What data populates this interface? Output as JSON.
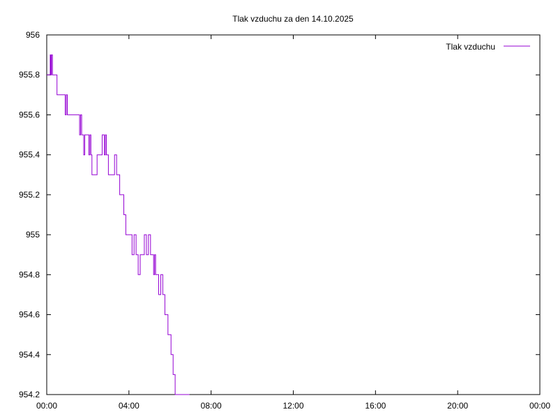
{
  "chart_data": {
    "type": "line",
    "title": "Tlak vzduchu za den 14.10.2025",
    "xlabel": "",
    "ylabel": "",
    "x_ticks": [
      "00:00",
      "04:00",
      "08:00",
      "12:00",
      "16:00",
      "20:00",
      "00:00"
    ],
    "y_ticks": [
      "954.2",
      "954.4",
      "954.6",
      "954.8",
      "955",
      "955.2",
      "955.4",
      "955.6",
      "955.8",
      "956"
    ],
    "xlim_hours": [
      0,
      24
    ],
    "ylim": [
      954.2,
      956
    ],
    "grid": false,
    "legend_position": "top-right",
    "series_color": "#9400d3",
    "series": [
      {
        "name": "Tlak vzduchu",
        "x_hours": [
          0.0,
          0.15,
          0.17,
          0.2,
          0.23,
          0.28,
          0.33,
          0.5,
          0.85,
          0.9,
          0.95,
          1.0,
          1.05,
          1.3,
          1.55,
          1.6,
          1.65,
          1.7,
          1.75,
          1.8,
          1.85,
          1.95,
          2.05,
          2.1,
          2.15,
          2.2,
          2.35,
          2.45,
          2.55,
          2.7,
          2.8,
          2.85,
          2.9,
          2.95,
          3.0,
          3.1,
          3.2,
          3.3,
          3.4,
          3.5,
          3.55,
          3.65,
          3.75,
          3.85,
          3.95,
          4.05,
          4.15,
          4.25,
          4.35,
          4.45,
          4.55,
          4.65,
          4.75,
          4.85,
          4.95,
          5.05,
          5.15,
          5.2,
          5.25,
          5.3,
          5.35,
          5.45,
          5.5,
          5.55,
          5.65,
          5.75,
          5.8,
          5.9,
          6.0,
          6.05,
          6.1,
          6.15,
          6.2,
          6.25,
          6.3,
          6.35,
          6.4,
          6.45,
          6.5,
          6.55,
          6.6,
          6.7,
          6.75,
          6.85,
          6.9,
          6.95
        ],
        "values": [
          955.8,
          955.8,
          955.9,
          955.8,
          955.9,
          955.8,
          955.8,
          955.7,
          955.7,
          955.6,
          955.7,
          955.6,
          955.6,
          955.6,
          955.6,
          955.5,
          955.6,
          955.5,
          955.5,
          955.4,
          955.5,
          955.5,
          955.4,
          955.5,
          955.4,
          955.3,
          955.3,
          955.4,
          955.4,
          955.5,
          955.4,
          955.5,
          955.4,
          955.4,
          955.3,
          955.3,
          955.3,
          955.4,
          955.3,
          955.3,
          955.2,
          955.2,
          955.1,
          955.0,
          955.0,
          955.0,
          954.9,
          955.0,
          954.9,
          954.8,
          954.9,
          954.9,
          955.0,
          954.9,
          955.0,
          954.9,
          954.9,
          954.8,
          954.9,
          954.8,
          954.8,
          954.7,
          954.7,
          954.8,
          954.7,
          954.6,
          954.6,
          954.5,
          954.5,
          954.4,
          954.4,
          954.3,
          954.3,
          954.2,
          954.2,
          954.2,
          954.2,
          954.2,
          954.2,
          954.2,
          954.2,
          954.2,
          954.2,
          954.2,
          954.2,
          954.2
        ]
      }
    ]
  }
}
